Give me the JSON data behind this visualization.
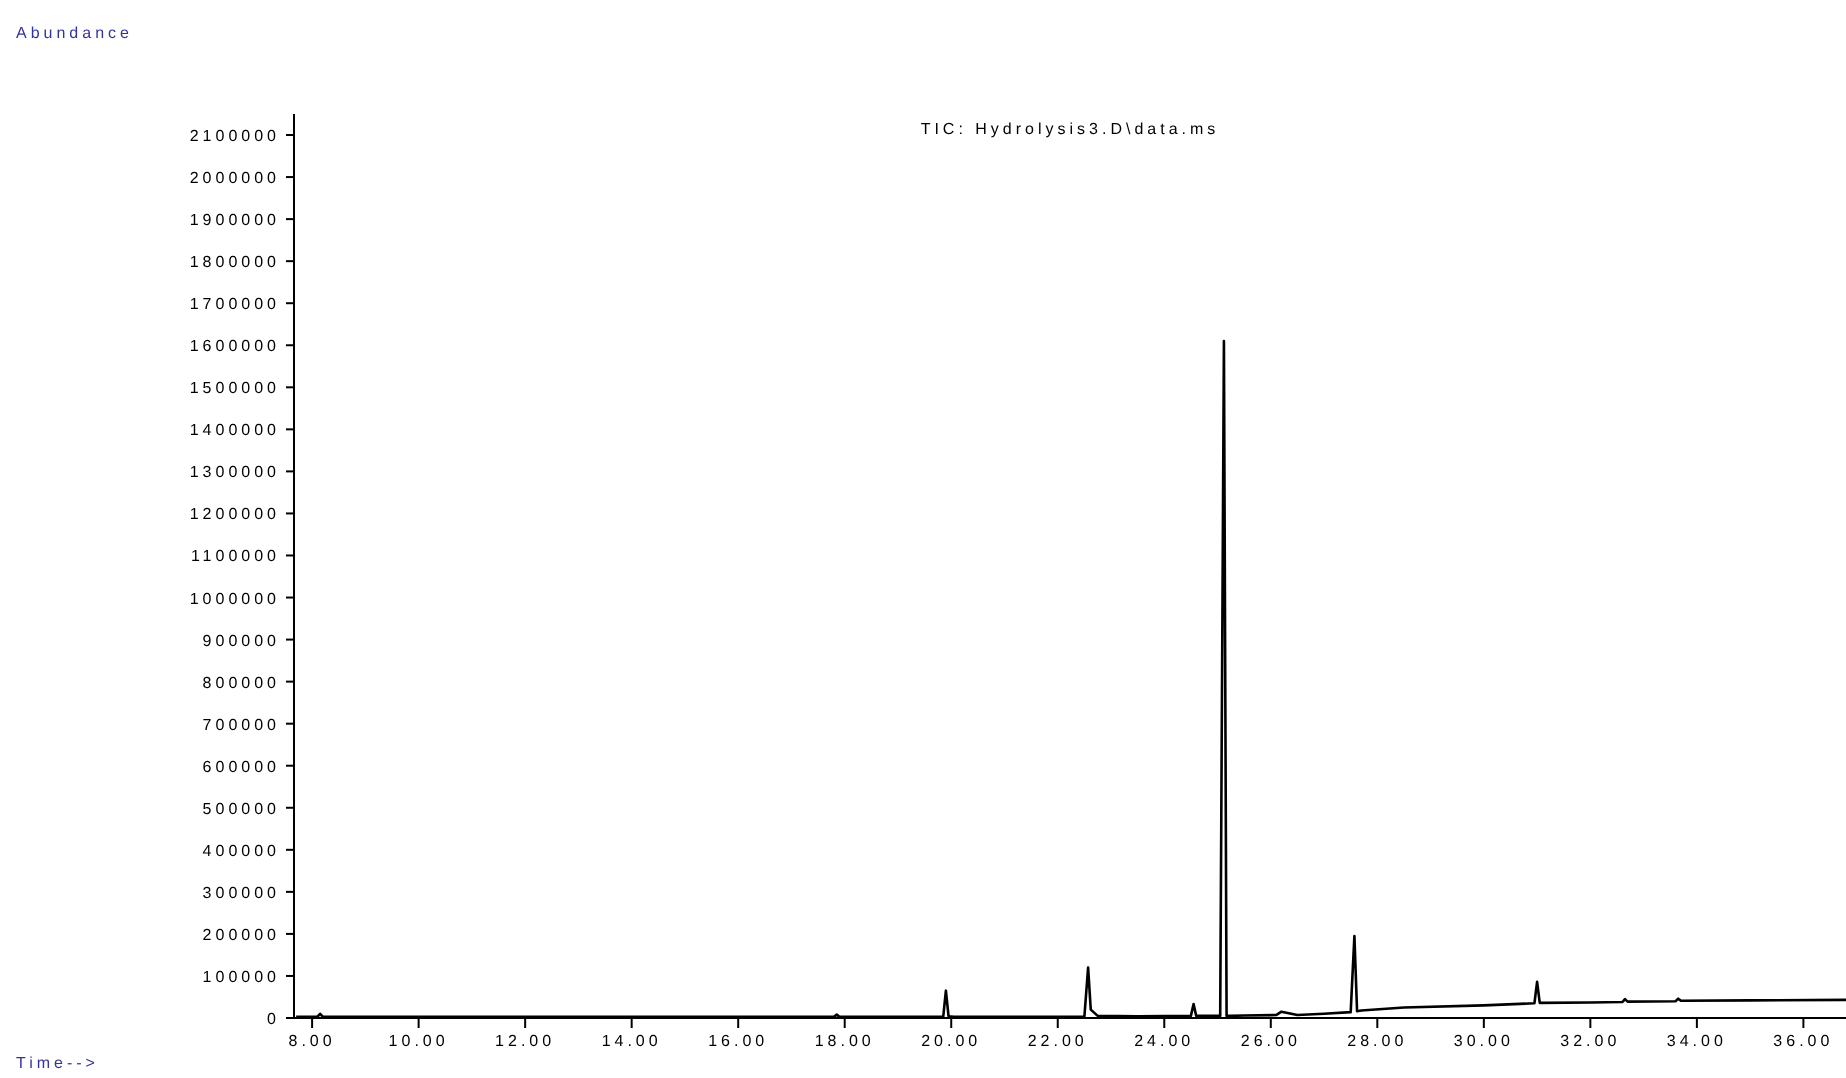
{
  "chart_data": {
    "type": "line",
    "title": "TIC: Hydrolysis3.D\\data.ms",
    "annotations": [
      "Abundance",
      "Time-->"
    ],
    "xlim": [
      7.66,
      36.8
    ],
    "ylim": [
      0,
      2150000
    ],
    "xticks": [
      {
        "value": 8,
        "label": "8.00"
      },
      {
        "value": 10,
        "label": "10.00"
      },
      {
        "value": 12,
        "label": "12.00"
      },
      {
        "value": 14,
        "label": "14.00"
      },
      {
        "value": 16,
        "label": "16.00"
      },
      {
        "value": 18,
        "label": "18.00"
      },
      {
        "value": 20,
        "label": "20.00"
      },
      {
        "value": 22,
        "label": "22.00"
      },
      {
        "value": 24,
        "label": "24.00"
      },
      {
        "value": 26,
        "label": "26.00"
      },
      {
        "value": 28,
        "label": "28.00"
      },
      {
        "value": 30,
        "label": "30.00"
      },
      {
        "value": 32,
        "label": "32.00"
      },
      {
        "value": 34,
        "label": "34.00"
      },
      {
        "value": 36,
        "label": "36.00"
      }
    ],
    "yticks": [
      0,
      100000,
      200000,
      300000,
      400000,
      500000,
      600000,
      700000,
      800000,
      900000,
      1000000,
      1100000,
      1200000,
      1300000,
      1400000,
      1500000,
      1600000,
      1700000,
      1800000,
      1900000,
      2000000,
      2100000
    ],
    "grid": false,
    "marker": "none",
    "line_style": "solid",
    "series": [
      {
        "color": "#000000",
        "x": [
          7.7,
          8.1,
          8.15,
          8.2,
          10,
          14,
          17.8,
          17.85,
          17.9,
          19.85,
          19.9,
          19.95,
          20.05,
          22.5,
          22.57,
          22.62,
          22.75,
          23.5,
          24.5,
          24.55,
          24.6,
          25.05,
          25.12,
          25.17,
          25.25,
          25.5,
          26.1,
          26.2,
          26.5,
          27.0,
          27.5,
          27.57,
          27.62,
          27.7,
          28.5,
          30,
          30.95,
          31.0,
          31.05,
          32,
          32.6,
          32.65,
          32.7,
          33.6,
          33.65,
          33.7,
          35,
          36.8
        ],
        "values": [
          3000,
          3000,
          10000,
          3000,
          3000,
          3000,
          3000,
          8000,
          3000,
          3000,
          65000,
          4000,
          3000,
          3000,
          120000,
          20000,
          5000,
          4000,
          5000,
          33000,
          5000,
          5000,
          1610000,
          5000,
          5000,
          6000,
          7000,
          15000,
          7000,
          10000,
          14000,
          195000,
          16000,
          18000,
          25000,
          30000,
          35000,
          86000,
          36000,
          37000,
          38000,
          45000,
          39000,
          40000,
          46000,
          41000,
          42000,
          43000
        ]
      }
    ]
  }
}
